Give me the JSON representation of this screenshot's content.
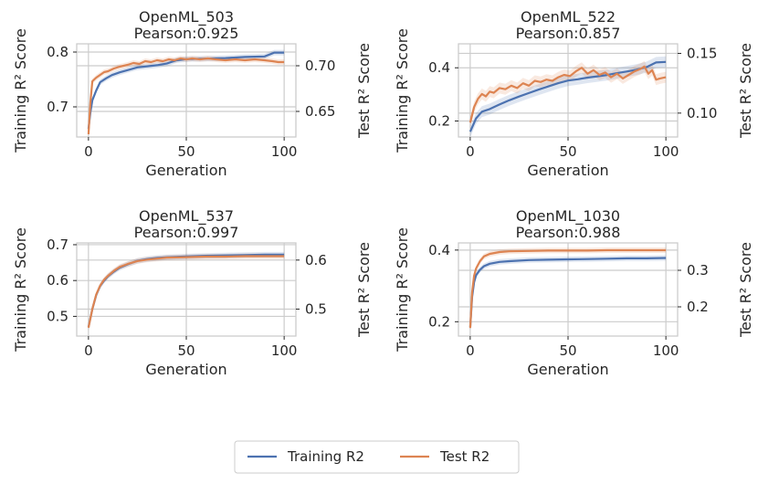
{
  "colors": {
    "train": "#4c72b0",
    "test": "#dd8452",
    "grid": "#cccccc",
    "axis": "#cccccc"
  },
  "legend": {
    "train_label": "Training R2",
    "test_label": "Test R2"
  },
  "chart_data": [
    {
      "type": "line",
      "title": "OpenML_503",
      "subtitle": "Pearson:0.925",
      "xlabel": "Generation",
      "ylabel_left": "Training R² Score",
      "ylabel_right": "Test R² Score",
      "xlim": [
        -6,
        106
      ],
      "ylim_left": [
        0.645,
        0.815
      ],
      "ylim_right": [
        0.622,
        0.724
      ],
      "xticks": [
        0,
        50,
        100
      ],
      "yticks_left": [
        0.7,
        0.8
      ],
      "yticks_right": [
        0.65,
        0.7
      ],
      "train_points": [
        [
          0,
          0.66
        ],
        [
          1,
          0.69
        ],
        [
          2,
          0.712
        ],
        [
          4,
          0.73
        ],
        [
          6,
          0.745
        ],
        [
          9,
          0.752
        ],
        [
          12,
          0.758
        ],
        [
          16,
          0.763
        ],
        [
          20,
          0.767
        ],
        [
          25,
          0.772
        ],
        [
          30,
          0.774
        ],
        [
          35,
          0.776
        ],
        [
          40,
          0.779
        ],
        [
          45,
          0.785
        ],
        [
          50,
          0.787
        ],
        [
          60,
          0.788
        ],
        [
          70,
          0.789
        ],
        [
          80,
          0.791
        ],
        [
          90,
          0.792
        ],
        [
          95,
          0.799
        ],
        [
          100,
          0.799
        ]
      ],
      "test_points": [
        [
          0,
          0.625
        ],
        [
          1,
          0.66
        ],
        [
          2,
          0.683
        ],
        [
          4,
          0.687
        ],
        [
          6,
          0.69
        ],
        [
          8,
          0.693
        ],
        [
          10,
          0.694
        ],
        [
          13,
          0.697
        ],
        [
          16,
          0.699
        ],
        [
          20,
          0.701
        ],
        [
          23,
          0.703
        ],
        [
          26,
          0.702
        ],
        [
          29,
          0.705
        ],
        [
          32,
          0.704
        ],
        [
          35,
          0.706
        ],
        [
          38,
          0.705
        ],
        [
          41,
          0.707
        ],
        [
          44,
          0.706
        ],
        [
          47,
          0.708
        ],
        [
          50,
          0.707
        ],
        [
          53,
          0.708
        ],
        [
          57,
          0.707
        ],
        [
          61,
          0.708
        ],
        [
          65,
          0.707
        ],
        [
          70,
          0.706
        ],
        [
          75,
          0.707
        ],
        [
          80,
          0.706
        ],
        [
          85,
          0.707
        ],
        [
          90,
          0.706
        ],
        [
          94,
          0.705
        ],
        [
          97,
          0.704
        ],
        [
          100,
          0.704
        ]
      ]
    },
    {
      "type": "line",
      "title": "OpenML_522",
      "subtitle": "Pearson:0.857",
      "xlabel": "Generation",
      "ylabel_left": "Training R² Score",
      "ylabel_right": "Test R² Score",
      "xlim": [
        -6,
        106
      ],
      "ylim_left": [
        0.14,
        0.49
      ],
      "ylim_right": [
        0.08,
        0.158
      ],
      "xticks": [
        0,
        50,
        100
      ],
      "yticks_left": [
        0.2,
        0.4
      ],
      "yticks_right": [
        0.1,
        0.15
      ],
      "train_points": [
        [
          0,
          0.16
        ],
        [
          3,
          0.21
        ],
        [
          6,
          0.235
        ],
        [
          10,
          0.245
        ],
        [
          15,
          0.262
        ],
        [
          20,
          0.278
        ],
        [
          25,
          0.292
        ],
        [
          30,
          0.305
        ],
        [
          35,
          0.318
        ],
        [
          40,
          0.33
        ],
        [
          45,
          0.342
        ],
        [
          50,
          0.352
        ],
        [
          55,
          0.357
        ],
        [
          60,
          0.363
        ],
        [
          65,
          0.368
        ],
        [
          70,
          0.373
        ],
        [
          75,
          0.38
        ],
        [
          80,
          0.386
        ],
        [
          85,
          0.393
        ],
        [
          90,
          0.402
        ],
        [
          95,
          0.42
        ],
        [
          100,
          0.422
        ]
      ],
      "test_points": [
        [
          0,
          0.092
        ],
        [
          2,
          0.105
        ],
        [
          4,
          0.112
        ],
        [
          6,
          0.116
        ],
        [
          8,
          0.114
        ],
        [
          10,
          0.118
        ],
        [
          12,
          0.117
        ],
        [
          15,
          0.121
        ],
        [
          18,
          0.12
        ],
        [
          21,
          0.123
        ],
        [
          24,
          0.121
        ],
        [
          27,
          0.125
        ],
        [
          30,
          0.123
        ],
        [
          33,
          0.127
        ],
        [
          36,
          0.126
        ],
        [
          39,
          0.128
        ],
        [
          42,
          0.127
        ],
        [
          45,
          0.13
        ],
        [
          48,
          0.132
        ],
        [
          51,
          0.131
        ],
        [
          54,
          0.135
        ],
        [
          57,
          0.138
        ],
        [
          60,
          0.133
        ],
        [
          63,
          0.136
        ],
        [
          66,
          0.132
        ],
        [
          69,
          0.134
        ],
        [
          72,
          0.13
        ],
        [
          75,
          0.133
        ],
        [
          78,
          0.129
        ],
        [
          81,
          0.132
        ],
        [
          84,
          0.135
        ],
        [
          87,
          0.137
        ],
        [
          89,
          0.139
        ],
        [
          91,
          0.133
        ],
        [
          93,
          0.136
        ],
        [
          95,
          0.128
        ],
        [
          97,
          0.129
        ],
        [
          100,
          0.13
        ]
      ]
    },
    {
      "type": "line",
      "title": "OpenML_537",
      "subtitle": "Pearson:0.997",
      "xlabel": "Generation",
      "ylabel_left": "Training R² Score",
      "ylabel_right": "Test R² Score",
      "xlim": [
        -6,
        106
      ],
      "ylim_left": [
        0.445,
        0.705
      ],
      "ylim_right": [
        0.445,
        0.635
      ],
      "xticks": [
        0,
        50,
        100
      ],
      "yticks_left": [
        0.5,
        0.6,
        0.7
      ],
      "yticks_right": [
        0.5,
        0.6
      ],
      "train_points": [
        [
          0,
          0.47
        ],
        [
          2,
          0.52
        ],
        [
          4,
          0.56
        ],
        [
          6,
          0.585
        ],
        [
          8,
          0.6
        ],
        [
          10,
          0.612
        ],
        [
          13,
          0.625
        ],
        [
          16,
          0.636
        ],
        [
          20,
          0.645
        ],
        [
          25,
          0.655
        ],
        [
          30,
          0.66
        ],
        [
          35,
          0.663
        ],
        [
          40,
          0.665
        ],
        [
          50,
          0.667
        ],
        [
          60,
          0.669
        ],
        [
          70,
          0.67
        ],
        [
          80,
          0.671
        ],
        [
          90,
          0.672
        ],
        [
          100,
          0.672
        ]
      ],
      "test_points": [
        [
          0,
          0.462
        ],
        [
          2,
          0.5
        ],
        [
          4,
          0.53
        ],
        [
          6,
          0.548
        ],
        [
          8,
          0.56
        ],
        [
          10,
          0.568
        ],
        [
          13,
          0.578
        ],
        [
          16,
          0.586
        ],
        [
          20,
          0.592
        ],
        [
          25,
          0.598
        ],
        [
          30,
          0.601
        ],
        [
          35,
          0.603
        ],
        [
          40,
          0.605
        ],
        [
          50,
          0.606
        ],
        [
          60,
          0.607
        ],
        [
          70,
          0.607
        ],
        [
          80,
          0.608
        ],
        [
          90,
          0.608
        ],
        [
          100,
          0.608
        ]
      ]
    },
    {
      "type": "line",
      "title": "OpenML_1030",
      "subtitle": "Pearson:0.988",
      "xlabel": "Generation",
      "ylabel_left": "Training R² Score",
      "ylabel_right": "Test R² Score",
      "xlim": [
        -6,
        106
      ],
      "ylim_left": [
        0.16,
        0.42
      ],
      "ylim_right": [
        0.12,
        0.375
      ],
      "xticks": [
        0,
        50,
        100
      ],
      "yticks_left": [
        0.2,
        0.4
      ],
      "yticks_right": [
        0.2,
        0.3
      ],
      "train_points": [
        [
          0,
          0.185
        ],
        [
          1,
          0.27
        ],
        [
          2,
          0.31
        ],
        [
          3,
          0.33
        ],
        [
          5,
          0.345
        ],
        [
          7,
          0.355
        ],
        [
          10,
          0.362
        ],
        [
          15,
          0.367
        ],
        [
          20,
          0.369
        ],
        [
          30,
          0.372
        ],
        [
          40,
          0.373
        ],
        [
          50,
          0.374
        ],
        [
          60,
          0.375
        ],
        [
          70,
          0.376
        ],
        [
          80,
          0.377
        ],
        [
          90,
          0.377
        ],
        [
          100,
          0.378
        ]
      ],
      "test_points": [
        [
          0,
          0.142
        ],
        [
          1,
          0.24
        ],
        [
          2,
          0.285
        ],
        [
          3,
          0.305
        ],
        [
          5,
          0.325
        ],
        [
          7,
          0.338
        ],
        [
          10,
          0.345
        ],
        [
          15,
          0.35
        ],
        [
          20,
          0.352
        ],
        [
          30,
          0.353
        ],
        [
          40,
          0.354
        ],
        [
          50,
          0.354
        ],
        [
          60,
          0.354
        ],
        [
          70,
          0.355
        ],
        [
          80,
          0.355
        ],
        [
          90,
          0.355
        ],
        [
          100,
          0.355
        ]
      ]
    }
  ]
}
